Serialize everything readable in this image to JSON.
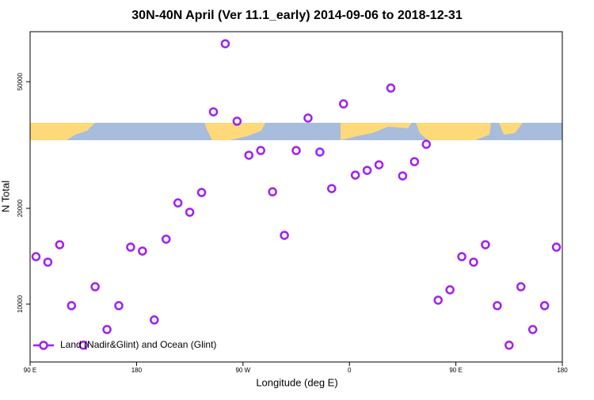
{
  "chart_data": {
    "type": "scatter",
    "title": "30N-40N April (Ver 11.1_early)   2014-09-06 to 2018-12-31",
    "x_label": "Longitude (deg E)",
    "y_label": "N Total",
    "xlim": [
      90,
      540
    ],
    "xticks": [
      {
        "value": 90,
        "label": "90 E"
      },
      {
        "value": 180,
        "label": "180"
      },
      {
        "value": 270,
        "label": "90 W"
      },
      {
        "value": 360,
        "label": "0"
      },
      {
        "value": 450,
        "label": "90 E"
      },
      {
        "value": 540,
        "label": "180"
      }
    ],
    "ylim": [
      6580,
      71800
    ],
    "yticks": [
      10000,
      20000,
      50000
    ],
    "log_y": true,
    "legend": "lower left",
    "series": [
      {
        "name": "Land (Nadir&Glint) and Ocean (Glint)",
        "color": "#a020f0",
        "x": [
          95,
          105,
          115,
          125,
          135,
          145,
          155,
          165,
          175,
          185,
          195,
          205,
          215,
          225,
          235,
          245,
          255,
          265,
          275,
          285,
          295,
          305,
          315,
          325,
          335,
          345,
          355,
          365,
          375,
          385,
          395,
          405,
          415,
          425,
          435,
          445,
          455,
          465,
          475,
          485,
          495,
          505,
          515,
          525,
          535
        ],
        "values": [
          14100,
          13550,
          15370,
          9890,
          7430,
          11340,
          8320,
          9890,
          15100,
          14680,
          8920,
          16000,
          20800,
          19440,
          22430,
          40200,
          65800,
          37560,
          29370,
          30390,
          22540,
          16450,
          30390,
          38440,
          30050,
          23070,
          42580,
          25430,
          26320,
          27400,
          47750,
          25290,
          28040,
          31790,
          10290,
          11090,
          14100,
          13550,
          15370,
          9890,
          7430,
          11340,
          8320,
          9890,
          15100
        ]
      }
    ]
  }
}
